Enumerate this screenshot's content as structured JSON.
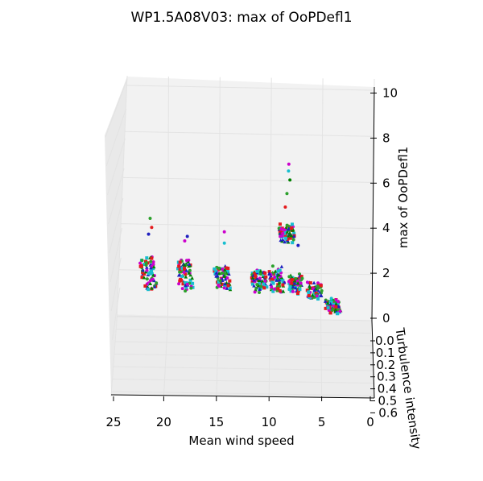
{
  "chart_data": {
    "type": "scatter",
    "projection": "3d",
    "title": "WP1.5A08V03: max of OoPDefl1",
    "xlabel": "Mean wind speed",
    "ylabel": "Turbulence intensity",
    "zlabel": "max of OoPDefl1",
    "xlim": [
      0,
      25
    ],
    "ylim": [
      0,
      0.6
    ],
    "zlim": [
      0,
      10
    ],
    "x_ticks": [
      "25",
      "20",
      "15",
      "10",
      "5",
      "0"
    ],
    "y_ticks": [
      "0.0",
      "0.1",
      "0.2",
      "0.3",
      "0.4",
      "0.5",
      "0.6"
    ],
    "z_ticks": [
      "0",
      "2",
      "4",
      "6",
      "8",
      "10"
    ],
    "grid": true,
    "pane_color": "#f2f2f2",
    "grid_color": "#e3e3e3",
    "marker_colors": [
      "#17becf",
      "#cc00cc",
      "#1f1fbf",
      "#e41a1c",
      "#2ca02c",
      "#008000"
    ],
    "clusters": [
      {
        "wind": 4,
        "oopdefl_range": [
          0.3,
          0.9
        ],
        "outliers": [
          0.95
        ]
      },
      {
        "wind": 6,
        "oopdefl_range": [
          1.0,
          1.6
        ],
        "outliers": []
      },
      {
        "wind": 8,
        "oopdefl_range": [
          1.2,
          2.0
        ],
        "outliers": [
          3.3
        ]
      },
      {
        "wind": 9,
        "oopdefl_range": [
          3.5,
          4.2
        ],
        "outliers": [
          5.0,
          5.6,
          6.2,
          6.6,
          6.9
        ]
      },
      {
        "wind": 10,
        "oopdefl_range": [
          1.3,
          2.3
        ],
        "outliers": []
      },
      {
        "wind": 12,
        "oopdefl_range": [
          1.3,
          2.2
        ],
        "outliers": []
      },
      {
        "wind": 16,
        "oopdefl_range": [
          1.4,
          2.4
        ],
        "outliers": [
          3.4,
          3.9
        ]
      },
      {
        "wind": 20,
        "oopdefl_range": [
          1.3,
          2.6
        ],
        "outliers": [
          3.5,
          3.7
        ]
      },
      {
        "wind": 24,
        "oopdefl_range": [
          1.4,
          2.7
        ],
        "outliers": [
          3.8,
          4.1,
          4.5
        ]
      }
    ]
  }
}
